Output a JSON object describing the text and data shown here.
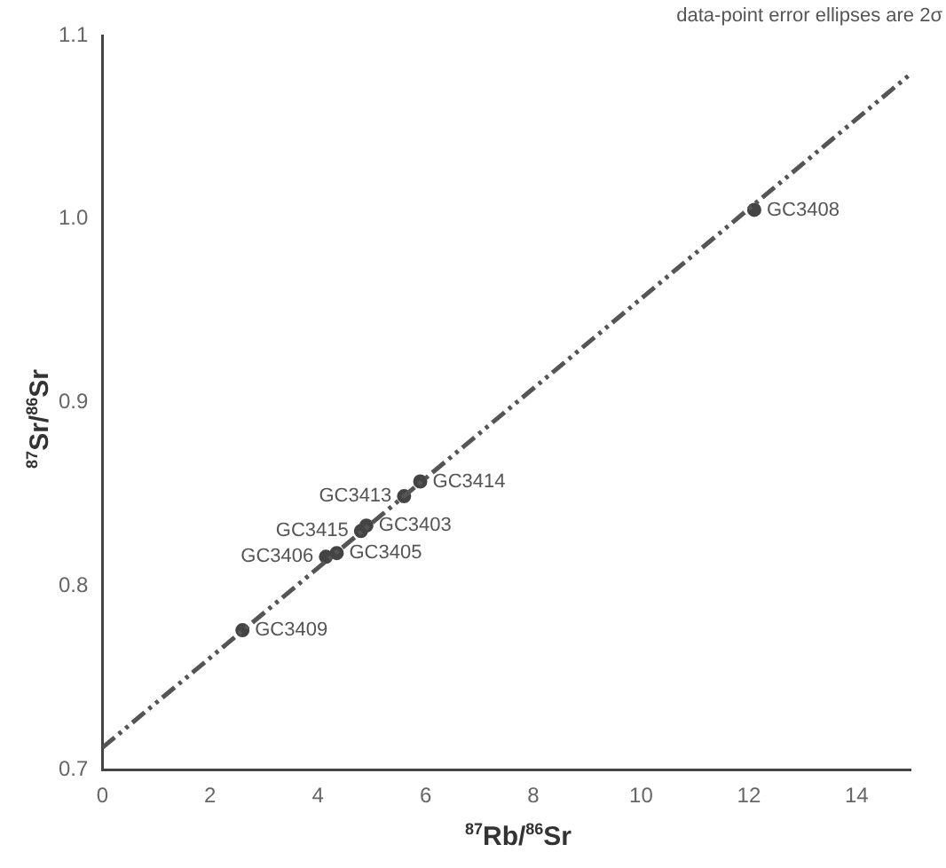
{
  "chart_data": {
    "type": "scatter",
    "xlabel": "$^{87}$Rb/$^{86}$Sr",
    "ylabel": "$^{87}$Sr/$^{86}$Sr",
    "xlim": [
      0,
      15
    ],
    "xticks": [
      0,
      2,
      4,
      6,
      8,
      10,
      12,
      14
    ],
    "ylim": [
      0.7,
      1.1
    ],
    "yticks": [
      0.7,
      0.8,
      0.9,
      {
        "value": 1,
        "label": "1.0"
      },
      1.1
    ],
    "grid": false,
    "legend": false,
    "marker": "circle",
    "series": [
      {
        "type": "line",
        "color": "#555555",
        "line_style": "dashed",
        "marker": "none",
        "x": [
          0,
          15
        ],
        "values": [
          0.712,
          1.079
        ]
      },
      {
        "color": "#444444",
        "x": [
          12.1,
          5.9,
          5.6,
          4.9,
          4.8,
          4.15,
          4.35,
          2.6
        ],
        "values": [
          1.005,
          0.857,
          0.849,
          0.833,
          0.83,
          0.816,
          0.818,
          0.776
        ]
      }
    ],
    "annotations": [
      "data-point error ellipses are 2σ",
      {
        "text": "GC3408",
        "x": 12.1,
        "y": 1.005
      },
      {
        "text": "GC3414",
        "x": 5.9,
        "y": 0.857
      },
      {
        "text": "GC3413",
        "x": 5.6,
        "y": 0.849
      },
      {
        "text": "GC3403",
        "x": 4.9,
        "y": 0.833
      },
      {
        "text": "GC3415",
        "x": 4.8,
        "y": 0.83
      },
      {
        "text": "GC3405",
        "x": 4.35,
        "y": 0.818
      },
      {
        "text": "GC3406",
        "x": 4.15,
        "y": 0.816
      },
      {
        "text": "GC3409",
        "x": 2.6,
        "y": 0.776
      }
    ]
  }
}
